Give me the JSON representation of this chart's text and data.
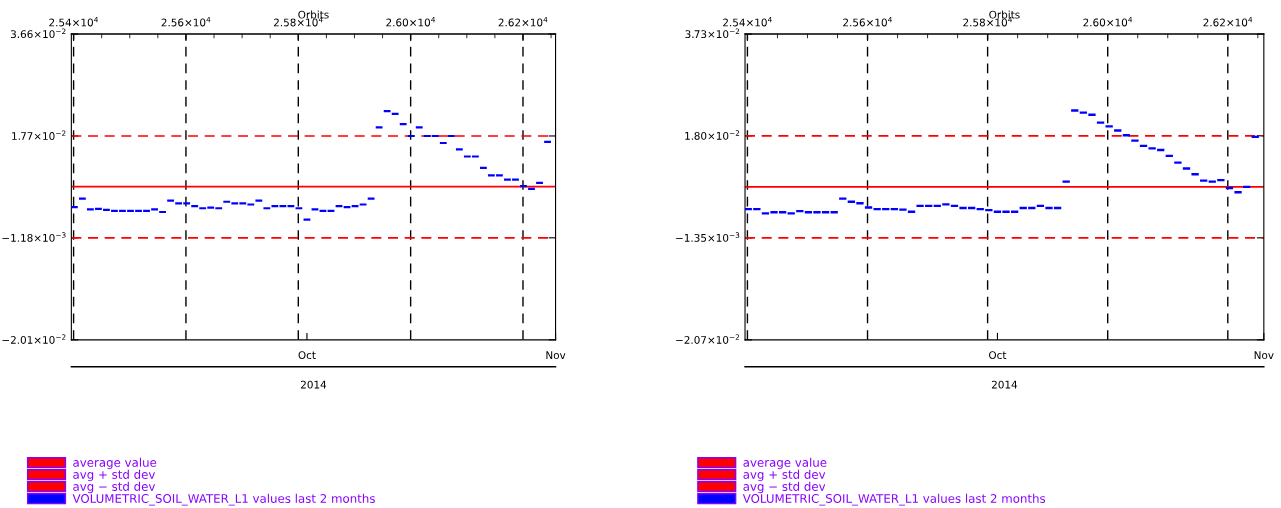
{
  "chart_data": [
    {
      "type": "scatter",
      "marker": "square",
      "x2label": "Orbits",
      "xlabel": "2014",
      "grid": "x2",
      "legend": "bottom left",
      "xlim": [
        "2014-09-01T15:00",
        "2014-11-01"
      ],
      "xticks": [
        {
          "value": "2014-10-01",
          "label": "Oct"
        },
        {
          "value": "2014-11-01",
          "label": "Nov"
        }
      ],
      "x2lim": [
        25396,
        26258
      ],
      "x2ticks": [
        {
          "value": 25400,
          "label": "2.54×10$^{4}$"
        },
        {
          "value": 25600,
          "label": "2.56×10$^{4}$"
        },
        {
          "value": 25800,
          "label": "2.58×10$^{4}$"
        },
        {
          "value": 26000,
          "label": "2.60×10$^{4}$"
        },
        {
          "value": 26200,
          "label": "2.62×10$^{4}$"
        }
      ],
      "ylim": [
        -0.0201,
        0.0366
      ],
      "yticks": [
        {
          "value": -0.0201,
          "label": "−2.01×10$^{−2}$"
        },
        {
          "value": -0.00118,
          "label": "−1.18×10$^{−3}$"
        },
        {
          "value": 0.0177,
          "label": "1.77×10$^{−2}$"
        },
        {
          "value": 0.0366,
          "label": "3.66×10$^{−2}$"
        }
      ],
      "x": [
        "2014-09-02",
        "2014-09-03",
        "2014-09-04",
        "2014-09-05",
        "2014-09-06",
        "2014-09-07",
        "2014-09-08",
        "2014-09-09",
        "2014-09-10",
        "2014-09-11",
        "2014-09-12",
        "2014-09-13",
        "2014-09-14",
        "2014-09-15",
        "2014-09-16",
        "2014-09-17",
        "2014-09-18",
        "2014-09-19",
        "2014-09-20",
        "2014-09-21",
        "2014-09-22",
        "2014-09-23",
        "2014-09-24",
        "2014-09-25",
        "2014-09-26",
        "2014-09-27",
        "2014-09-28",
        "2014-09-29",
        "2014-09-30",
        "2014-10-01",
        "2014-10-02",
        "2014-10-03",
        "2014-10-04",
        "2014-10-05",
        "2014-10-06",
        "2014-10-07",
        "2014-10-08",
        "2014-10-09",
        "2014-10-10",
        "2014-10-11",
        "2014-10-12",
        "2014-10-13",
        "2014-10-14",
        "2014-10-15",
        "2014-10-16",
        "2014-10-17",
        "2014-10-18",
        "2014-10-19",
        "2014-10-20",
        "2014-10-21",
        "2014-10-22",
        "2014-10-23",
        "2014-10-24",
        "2014-10-25",
        "2014-10-26",
        "2014-10-27",
        "2014-10-28",
        "2014-10-29",
        "2014-10-30",
        "2014-10-31"
      ],
      "series": [
        {
          "name": "VOLUMETRIC_SOIL_WATER_L1 values last 2 months",
          "color": "#0000ff",
          "values": [
            0.0045,
            0.0061,
            0.0041,
            0.0042,
            0.004,
            0.0038,
            0.0038,
            0.0038,
            0.0038,
            0.0038,
            0.0041,
            0.0036,
            0.0057,
            0.0052,
            0.0052,
            0.0047,
            0.0043,
            0.0044,
            0.0043,
            0.0055,
            0.0052,
            0.0052,
            0.005,
            0.0057,
            0.0043,
            0.0047,
            0.0047,
            0.0047,
            0.0043,
            0.0022,
            0.0041,
            0.0038,
            0.0038,
            0.0047,
            0.0045,
            0.0047,
            0.005,
            0.0061,
            0.0193,
            0.0223,
            0.0218,
            0.0199,
            0.0177,
            0.0193,
            0.0177,
            0.0177,
            0.0164,
            0.0177,
            0.0152,
            0.0139,
            0.0139,
            0.0118,
            0.0104,
            0.0104,
            0.0096,
            0.0096,
            0.0084,
            0.0079,
            0.009,
            0.0166
          ]
        }
      ],
      "ref_lines": [
        {
          "axis": "y",
          "value": 0.0083,
          "label": "average value",
          "color": "#ff0000",
          "line_style": "solid"
        },
        {
          "axis": "y",
          "value": 0.0177,
          "label": "avg + std dev",
          "color": "#ff0000",
          "line_style": "dashed"
        },
        {
          "axis": "y",
          "value": -0.00118,
          "label": "avg − std dev",
          "color": "#ff0000",
          "line_style": "dashed"
        }
      ]
    },
    {
      "type": "scatter",
      "marker": "square",
      "x2label": "Orbits",
      "xlabel": "2014",
      "grid": "x2",
      "legend": "bottom left",
      "xlim": [
        "2014-09-01T15:00",
        "2014-11-01"
      ],
      "xticks": [
        {
          "value": "2014-10-01",
          "label": "Oct"
        },
        {
          "value": "2014-11-01",
          "label": "Nov"
        }
      ],
      "x2lim": [
        25396,
        26260
      ],
      "x2ticks": [
        {
          "value": 25400,
          "label": "2.54×10$^{4}$"
        },
        {
          "value": 25600,
          "label": "2.56×10$^{4}$"
        },
        {
          "value": 25800,
          "label": "2.58×10$^{4}$"
        },
        {
          "value": 26000,
          "label": "2.60×10$^{4}$"
        },
        {
          "value": 26200,
          "label": "2.62×10$^{4}$"
        }
      ],
      "ylim": [
        -0.0207,
        0.0373
      ],
      "yticks": [
        {
          "value": -0.0207,
          "label": "−2.07×10$^{−2}$"
        },
        {
          "value": -0.00135,
          "label": "−1.35×10$^{−3}$"
        },
        {
          "value": 0.018,
          "label": "1.80×10$^{−2}$"
        },
        {
          "value": 0.0373,
          "label": "3.73×10$^{−2}$"
        }
      ],
      "x": [
        "2014-09-02",
        "2014-09-03",
        "2014-09-04",
        "2014-09-05",
        "2014-09-06",
        "2014-09-07",
        "2014-09-08",
        "2014-09-09",
        "2014-09-10",
        "2014-09-11",
        "2014-09-12",
        "2014-09-13",
        "2014-09-14",
        "2014-09-15",
        "2014-09-16",
        "2014-09-17",
        "2014-09-18",
        "2014-09-19",
        "2014-09-20",
        "2014-09-21",
        "2014-09-22",
        "2014-09-23",
        "2014-09-24",
        "2014-09-25",
        "2014-09-26",
        "2014-09-27",
        "2014-09-28",
        "2014-09-29",
        "2014-09-30",
        "2014-10-01",
        "2014-10-02",
        "2014-10-03",
        "2014-10-04",
        "2014-10-05",
        "2014-10-06",
        "2014-10-07",
        "2014-10-08",
        "2014-10-09",
        "2014-10-10",
        "2014-10-11",
        "2014-10-12",
        "2014-10-13",
        "2014-10-14",
        "2014-10-15",
        "2014-10-16",
        "2014-10-17",
        "2014-10-18",
        "2014-10-19",
        "2014-10-20",
        "2014-10-21",
        "2014-10-22",
        "2014-10-23",
        "2014-10-24",
        "2014-10-25",
        "2014-10-26",
        "2014-10-27",
        "2014-10-28",
        "2014-10-29",
        "2014-10-30",
        "2014-10-31"
      ],
      "series": [
        {
          "name": "VOLUMETRIC_SOIL_WATER_L1 values last 2 months",
          "color": "#0000ff",
          "values": [
            0.0041,
            0.0041,
            0.0033,
            0.0035,
            0.0035,
            0.0033,
            0.0037,
            0.0035,
            0.0035,
            0.0035,
            0.0035,
            0.0061,
            0.0055,
            0.0052,
            0.0044,
            0.0041,
            0.0041,
            0.0041,
            0.004,
            0.0036,
            0.0047,
            0.0047,
            0.0047,
            0.005,
            0.0047,
            0.0043,
            0.0043,
            0.0041,
            0.0039,
            0.0036,
            0.0036,
            0.0036,
            0.0043,
            0.0043,
            0.0047,
            0.0043,
            0.0043,
            0.0093,
            0.0228,
            0.0224,
            0.022,
            0.0205,
            0.0198,
            0.019,
            0.0181,
            0.0171,
            0.0161,
            0.0156,
            0.0153,
            0.0142,
            0.0129,
            0.0118,
            0.0107,
            0.0095,
            0.0093,
            0.0096,
            0.0081,
            0.0073,
            0.0083,
            0.0178
          ]
        }
      ],
      "ref_lines": [
        {
          "axis": "y",
          "value": 0.0083,
          "label": "average value",
          "color": "#ff0000",
          "line_style": "solid"
        },
        {
          "axis": "y",
          "value": 0.018,
          "label": "avg + std dev",
          "color": "#ff0000",
          "line_style": "dashed"
        },
        {
          "axis": "y",
          "value": -0.00135,
          "label": "avg − std dev",
          "color": "#ff0000",
          "line_style": "dashed"
        }
      ]
    }
  ]
}
